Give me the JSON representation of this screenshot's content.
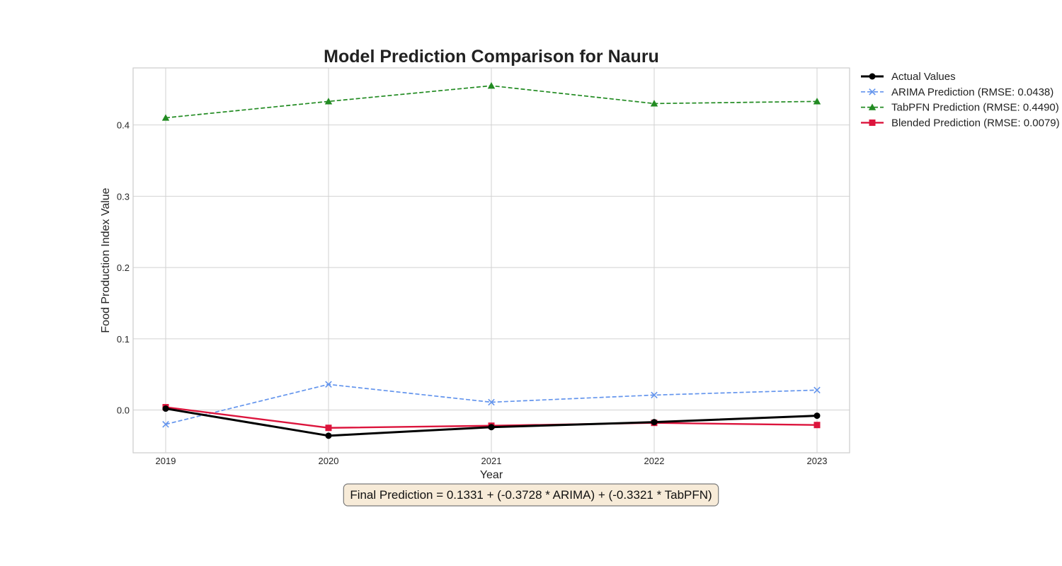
{
  "chart_data": {
    "type": "line",
    "title": "Model Prediction Comparison for Nauru",
    "xlabel": "Year",
    "ylabel": "Food Production Index Value",
    "x": [
      2019,
      2020,
      2021,
      2022,
      2023
    ],
    "x_tick_labels": [
      "2019",
      "2020",
      "2021",
      "2022",
      "2023"
    ],
    "xlim": [
      2018.8,
      2023.2
    ],
    "ylim": [
      -0.06,
      0.48
    ],
    "y_ticks": [
      0.0,
      0.1,
      0.2,
      0.3,
      0.4
    ],
    "y_tick_labels": [
      "0.0",
      "0.1",
      "0.2",
      "0.3",
      "0.4"
    ],
    "grid": true,
    "legend_position": "outside-right",
    "series": [
      {
        "name": "Actual Values",
        "values": [
          0.002,
          -0.036,
          -0.024,
          -0.017,
          -0.008
        ],
        "color": "#000000",
        "line_style": "solid",
        "marker": "circle",
        "line_width": 3
      },
      {
        "name": "ARIMA Prediction (RMSE: 0.0438)",
        "values": [
          -0.02,
          0.036,
          0.011,
          0.021,
          0.028
        ],
        "color": "#6495ED",
        "line_style": "dashed",
        "marker": "x",
        "line_width": 1.7
      },
      {
        "name": "TabPFN Prediction (RMSE: 0.4490)",
        "values": [
          0.41,
          0.433,
          0.455,
          0.43,
          0.433
        ],
        "color": "#228B22",
        "line_style": "dashed",
        "marker": "triangle",
        "line_width": 1.7
      },
      {
        "name": "Blended Prediction (RMSE: 0.0079)",
        "values": [
          0.004,
          -0.025,
          -0.022,
          -0.018,
          -0.021
        ],
        "color": "#DC143C",
        "line_style": "solid",
        "marker": "square",
        "line_width": 2.4
      }
    ],
    "annotation": "Final Prediction = 0.1331 + (-0.3728 * ARIMA) + (-0.3321 * TabPFN)",
    "annotation_style": {
      "background": "#F7EBD8",
      "border": "#7a7a7a"
    }
  }
}
